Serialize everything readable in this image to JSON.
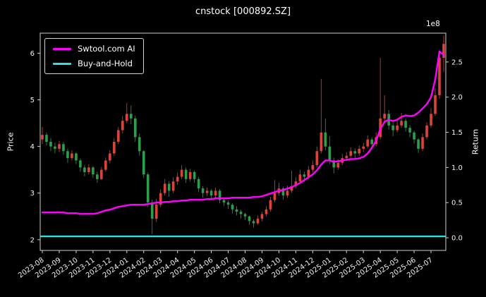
{
  "chart_data": {
    "type": "candlestick",
    "title": "cnstock [000892.SZ]",
    "ylabel_left": "Price",
    "ylabel_right": "Return",
    "right_axis_offset_label": "1e8",
    "legend": [
      {
        "label": "Swtool.com AI",
        "color": "#ff00ff"
      },
      {
        "label": "Buy-and-Hold",
        "color": "#2ee0e0"
      }
    ],
    "colors": {
      "up": "#d9453a",
      "down": "#2f9e4a",
      "frame": "#d0d0d0",
      "text": "#f2f2f2",
      "background": "#000000"
    },
    "x_tick_labels": [
      "2023-08",
      "2023-09",
      "2023-10",
      "2023-11",
      "2023-12",
      "2024-01",
      "2024-02",
      "2024-03",
      "2024-04",
      "2024-05",
      "2024-06",
      "2024-07",
      "2024-08",
      "2024-09",
      "2024-10",
      "2024-11",
      "2024-12",
      "2025-01",
      "2025-02",
      "2025-03",
      "2025-04",
      "2025-05",
      "2025-06",
      "2025-07"
    ],
    "candles_per_month": 4,
    "price_axis": {
      "ticks": [
        2,
        3,
        4,
        5,
        6
      ],
      "min": 1.77,
      "max": 6.43
    },
    "return_axis": {
      "ticks": [
        0.0,
        0.5,
        1.0,
        1.5,
        2.0,
        2.5
      ],
      "min": -0.18,
      "max": 2.91
    },
    "candles": [
      [
        4.15,
        4.42,
        4.05,
        4.25
      ],
      [
        4.25,
        4.3,
        4.02,
        4.1
      ],
      [
        4.1,
        4.18,
        3.9,
        4.0
      ],
      [
        4.0,
        4.08,
        3.85,
        3.95
      ],
      [
        3.95,
        4.12,
        3.88,
        4.05
      ],
      [
        4.05,
        4.1,
        3.82,
        3.9
      ],
      [
        3.9,
        3.95,
        3.65,
        3.75
      ],
      [
        3.75,
        3.92,
        3.7,
        3.85
      ],
      [
        3.85,
        3.88,
        3.62,
        3.7
      ],
      [
        3.7,
        3.74,
        3.46,
        3.55
      ],
      [
        3.55,
        3.6,
        3.36,
        3.45
      ],
      [
        3.45,
        3.62,
        3.4,
        3.55
      ],
      [
        3.55,
        3.58,
        3.32,
        3.4
      ],
      [
        3.4,
        3.46,
        3.22,
        3.3
      ],
      [
        3.3,
        3.56,
        3.28,
        3.5
      ],
      [
        3.5,
        3.76,
        3.46,
        3.7
      ],
      [
        3.7,
        3.92,
        3.64,
        3.85
      ],
      [
        3.85,
        4.18,
        3.8,
        4.1
      ],
      [
        4.1,
        4.42,
        4.05,
        4.35
      ],
      [
        4.35,
        4.65,
        4.28,
        4.55
      ],
      [
        4.55,
        4.93,
        4.5,
        4.7
      ],
      [
        4.7,
        4.88,
        4.48,
        4.6
      ],
      [
        4.6,
        4.66,
        4.1,
        4.2
      ],
      [
        4.2,
        4.28,
        3.8,
        3.9
      ],
      [
        3.9,
        3.92,
        3.32,
        3.4
      ],
      [
        3.4,
        3.44,
        2.7,
        2.8
      ],
      [
        2.8,
        2.86,
        2.12,
        2.45
      ],
      [
        2.45,
        2.88,
        2.38,
        2.75
      ],
      [
        2.75,
        3.08,
        2.7,
        3.0
      ],
      [
        3.0,
        3.3,
        2.95,
        3.2
      ],
      [
        3.2,
        3.26,
        2.92,
        3.05
      ],
      [
        3.05,
        3.34,
        3.0,
        3.25
      ],
      [
        3.25,
        3.44,
        3.18,
        3.35
      ],
      [
        3.35,
        3.6,
        3.3,
        3.5
      ],
      [
        3.5,
        3.55,
        3.22,
        3.3
      ],
      [
        3.3,
        3.52,
        3.25,
        3.45
      ],
      [
        3.45,
        3.48,
        3.22,
        3.3
      ],
      [
        3.3,
        3.34,
        3.02,
        3.1
      ],
      [
        3.1,
        3.15,
        2.9,
        3.0
      ],
      [
        3.0,
        3.12,
        2.94,
        3.05
      ],
      [
        3.05,
        3.08,
        2.86,
        2.95
      ],
      [
        2.95,
        3.12,
        2.9,
        3.05
      ],
      [
        3.05,
        3.09,
        2.78,
        2.85
      ],
      [
        2.85,
        2.9,
        2.72,
        2.8
      ],
      [
        2.8,
        2.84,
        2.66,
        2.75
      ],
      [
        2.75,
        2.78,
        2.56,
        2.65
      ],
      [
        2.65,
        2.72,
        2.52,
        2.6
      ],
      [
        2.6,
        2.64,
        2.46,
        2.55
      ],
      [
        2.55,
        2.58,
        2.42,
        2.5
      ],
      [
        2.5,
        2.52,
        2.32,
        2.4
      ],
      [
        2.4,
        2.44,
        2.26,
        2.35
      ],
      [
        2.35,
        2.52,
        2.32,
        2.45
      ],
      [
        2.45,
        2.6,
        2.4,
        2.55
      ],
      [
        2.55,
        2.72,
        2.5,
        2.65
      ],
      [
        2.65,
        2.92,
        2.6,
        2.85
      ],
      [
        2.85,
        3.28,
        2.8,
        3.0
      ],
      [
        3.0,
        3.22,
        2.94,
        3.1
      ],
      [
        3.1,
        3.14,
        2.86,
        2.95
      ],
      [
        2.95,
        3.16,
        2.9,
        3.05
      ],
      [
        3.05,
        3.48,
        3.0,
        3.15
      ],
      [
        3.15,
        3.34,
        3.1,
        3.25
      ],
      [
        3.25,
        3.5,
        3.2,
        3.4
      ],
      [
        3.4,
        3.46,
        3.24,
        3.35
      ],
      [
        3.35,
        3.58,
        3.3,
        3.5
      ],
      [
        3.5,
        3.7,
        3.44,
        3.6
      ],
      [
        3.6,
        4.0,
        3.55,
        3.9
      ],
      [
        3.9,
        5.45,
        3.85,
        4.3
      ],
      [
        4.3,
        4.6,
        3.92,
        4.0
      ],
      [
        4.0,
        4.22,
        3.62,
        3.7
      ],
      [
        3.7,
        3.76,
        3.42,
        3.55
      ],
      [
        3.55,
        3.72,
        3.5,
        3.65
      ],
      [
        3.65,
        3.84,
        3.6,
        3.75
      ],
      [
        3.75,
        3.88,
        3.68,
        3.8
      ],
      [
        3.8,
        3.98,
        3.76,
        3.9
      ],
      [
        3.9,
        3.96,
        3.74,
        3.85
      ],
      [
        3.85,
        4.02,
        3.8,
        3.95
      ],
      [
        3.95,
        4.08,
        3.88,
        4.0
      ],
      [
        4.0,
        4.24,
        3.96,
        4.15
      ],
      [
        4.15,
        4.2,
        3.94,
        4.05
      ],
      [
        4.05,
        4.3,
        4.0,
        4.2
      ],
      [
        4.2,
        5.9,
        4.15,
        4.6
      ],
      [
        4.6,
        5.1,
        4.5,
        4.7
      ],
      [
        4.7,
        4.78,
        4.36,
        4.45
      ],
      [
        4.45,
        4.52,
        4.22,
        4.35
      ],
      [
        4.35,
        4.56,
        4.3,
        4.45
      ],
      [
        4.45,
        4.72,
        4.4,
        4.55
      ],
      [
        4.55,
        4.6,
        4.32,
        4.4
      ],
      [
        4.4,
        4.46,
        4.2,
        4.3
      ],
      [
        4.3,
        4.34,
        4.06,
        4.15
      ],
      [
        4.15,
        4.18,
        3.86,
        3.95
      ],
      [
        3.95,
        4.28,
        3.9,
        4.2
      ],
      [
        4.2,
        4.52,
        4.15,
        4.45
      ],
      [
        4.45,
        4.82,
        4.4,
        4.7
      ],
      [
        4.7,
        5.25,
        4.65,
        5.1
      ],
      [
        5.1,
        6.05,
        5.02,
        5.9
      ],
      [
        5.9,
        6.38,
        5.6,
        6.2
      ]
    ],
    "ai_return": [
      0.36,
      0.36,
      0.36,
      0.36,
      0.36,
      0.36,
      0.35,
      0.35,
      0.35,
      0.34,
      0.34,
      0.34,
      0.34,
      0.35,
      0.37,
      0.39,
      0.4,
      0.42,
      0.44,
      0.45,
      0.46,
      0.47,
      0.47,
      0.47,
      0.47,
      0.48,
      0.49,
      0.5,
      0.5,
      0.51,
      0.51,
      0.52,
      0.52,
      0.53,
      0.53,
      0.54,
      0.54,
      0.54,
      0.54,
      0.55,
      0.55,
      0.56,
      0.56,
      0.56,
      0.56,
      0.57,
      0.57,
      0.57,
      0.57,
      0.57,
      0.58,
      0.58,
      0.59,
      0.61,
      0.63,
      0.65,
      0.67,
      0.68,
      0.7,
      0.72,
      0.75,
      0.78,
      0.82,
      0.86,
      0.9,
      0.96,
      1.04,
      1.1,
      1.1,
      1.08,
      1.09,
      1.1,
      1.11,
      1.12,
      1.12,
      1.13,
      1.15,
      1.2,
      1.28,
      1.38,
      1.55,
      1.65,
      1.68,
      1.66,
      1.68,
      1.72,
      1.74,
      1.73,
      1.74,
      1.78,
      1.84,
      1.9,
      2.0,
      2.25,
      2.65,
      2.6
    ],
    "buy_hold_return": 0.02,
    "grid": false,
    "legend_position": "upper-left"
  }
}
